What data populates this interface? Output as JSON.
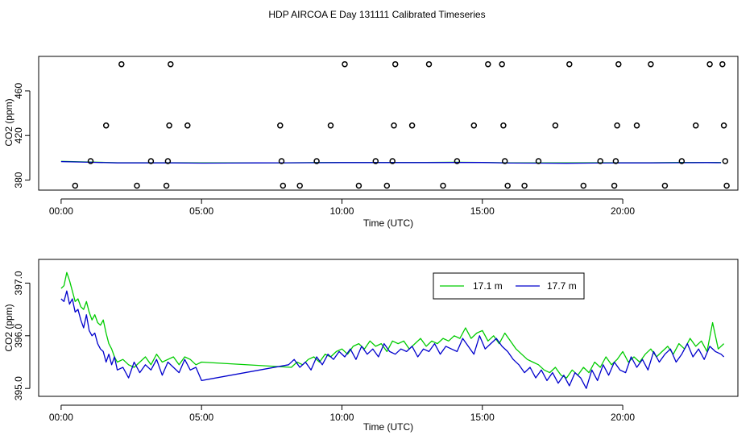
{
  "title": "HDP AIRCOA E  Day 131111  Calibrated Timeseries",
  "chart_data": [
    {
      "type": "line",
      "xlabel": "Time (UTC)",
      "ylabel": "CO2 (ppm)",
      "xlim": [
        -0.8,
        24.1
      ],
      "ylim": [
        371,
        491
      ],
      "x_ticks": [
        0,
        5,
        10,
        15,
        20
      ],
      "x_tick_labels": [
        "00:00",
        "05:00",
        "10:00",
        "15:00",
        "20:00"
      ],
      "y_ticks": [
        380,
        420,
        460
      ],
      "y_tick_labels": [
        "380",
        "420",
        "460"
      ],
      "legend": false,
      "series": [
        {
          "color": "#00cc00",
          "x": [
            0,
            1,
            2,
            3,
            4,
            5,
            6,
            7,
            8,
            9,
            10,
            11,
            12,
            13,
            14,
            15,
            16,
            17,
            18,
            19,
            20,
            21,
            22,
            23,
            23.5
          ],
          "y": [
            396.8,
            396.2,
            395.6,
            395.6,
            395.6,
            395.5,
            395.5,
            395.5,
            395.5,
            395.7,
            395.8,
            395.8,
            395.9,
            395.9,
            396.0,
            395.9,
            395.5,
            395.5,
            395.4,
            395.6,
            395.6,
            395.6,
            395.8,
            395.9,
            395.8
          ]
        },
        {
          "color": "#0000cc",
          "x": [
            0,
            1,
            2,
            3,
            4,
            5,
            6,
            7,
            8,
            9,
            10,
            11,
            12,
            13,
            14,
            15,
            16,
            17,
            18,
            19,
            20,
            21,
            22,
            23,
            23.5
          ],
          "y": [
            396.6,
            396.0,
            395.4,
            395.4,
            395.4,
            395.2,
            395.3,
            395.4,
            395.5,
            395.6,
            395.7,
            395.7,
            395.7,
            395.7,
            395.8,
            395.8,
            395.3,
            395.2,
            395.1,
            395.3,
            395.4,
            395.4,
            395.6,
            395.7,
            395.6
          ]
        }
      ],
      "outliers": {
        "x": [
          0.5,
          1.05,
          1.6,
          2.15,
          2.7,
          3.2,
          3.75,
          3.8,
          3.85,
          3.9,
          4.5,
          7.8,
          7.85,
          7.9,
          8.5,
          9.1,
          9.6,
          10.1,
          10.6,
          11.2,
          11.6,
          11.8,
          11.85,
          11.9,
          12.5,
          13.1,
          13.6,
          14.1,
          14.7,
          15.2,
          15.7,
          15.75,
          15.8,
          15.9,
          16.5,
          17.0,
          17.6,
          18.1,
          18.6,
          19.2,
          19.7,
          19.75,
          19.8,
          19.85,
          20.5,
          21.0,
          21.5,
          22.1,
          22.6,
          23.1,
          23.55,
          23.6,
          23.65,
          23.7
        ],
        "y": [
          375,
          397,
          429,
          484,
          375,
          397,
          375,
          397,
          429,
          484,
          429,
          429,
          397,
          375,
          375,
          397,
          429,
          484,
          375,
          397,
          375,
          397,
          429,
          484,
          429,
          484,
          375,
          397,
          429,
          484,
          484,
          429,
          397,
          375,
          375,
          397,
          429,
          484,
          375,
          397,
          375,
          397,
          429,
          484,
          429,
          484,
          375,
          397,
          429,
          484,
          484,
          429,
          397,
          375
        ]
      }
    },
    {
      "type": "line",
      "xlabel": "Time (UTC)",
      "ylabel": "CO2 (ppm)",
      "xlim": [
        -0.8,
        24.1
      ],
      "ylim": [
        394.85,
        397.45
      ],
      "x_ticks": [
        0,
        5,
        10,
        15,
        20
      ],
      "x_tick_labels": [
        "00:00",
        "05:00",
        "10:00",
        "15:00",
        "20:00"
      ],
      "y_ticks": [
        395.0,
        396.0,
        397.0
      ],
      "y_tick_labels": [
        "395.0",
        "396.0",
        "397.0"
      ],
      "legend": "top-right",
      "series": [
        {
          "name": "17.1 m",
          "color": "#00cc00",
          "x": [
            0.0,
            0.1,
            0.2,
            0.3,
            0.4,
            0.5,
            0.6,
            0.7,
            0.8,
            0.9,
            1.0,
            1.1,
            1.2,
            1.3,
            1.4,
            1.5,
            1.6,
            1.7,
            1.8,
            1.9,
            2.0,
            2.2,
            2.4,
            2.6,
            2.8,
            3.0,
            3.2,
            3.4,
            3.6,
            3.8,
            4.0,
            4.2,
            4.4,
            4.6,
            4.8,
            5.0,
            8.2,
            8.4,
            8.6,
            8.8,
            9.0,
            9.2,
            9.4,
            9.6,
            9.8,
            10.0,
            10.2,
            10.4,
            10.6,
            10.8,
            11.0,
            11.2,
            11.4,
            11.6,
            11.8,
            12.0,
            12.2,
            12.4,
            12.6,
            12.8,
            13.0,
            13.2,
            13.4,
            13.6,
            13.8,
            14.0,
            14.2,
            14.4,
            14.6,
            14.8,
            15.0,
            15.2,
            15.4,
            15.6,
            15.8,
            16.0,
            16.2,
            16.4,
            16.6,
            16.8,
            17.0,
            17.2,
            17.4,
            17.6,
            17.8,
            18.0,
            18.2,
            18.4,
            18.6,
            18.8,
            19.0,
            19.2,
            19.4,
            19.6,
            19.8,
            20.0,
            20.2,
            20.4,
            20.6,
            20.8,
            21.0,
            21.2,
            21.4,
            21.6,
            21.8,
            22.0,
            22.2,
            22.4,
            22.6,
            22.8,
            23.0,
            23.2,
            23.4,
            23.6
          ],
          "y": [
            396.9,
            396.95,
            397.2,
            397.05,
            396.85,
            396.65,
            396.7,
            396.55,
            396.5,
            396.65,
            396.45,
            396.3,
            396.4,
            396.25,
            396.2,
            396.3,
            396.05,
            395.85,
            395.75,
            395.6,
            395.5,
            395.55,
            395.45,
            395.4,
            395.5,
            395.6,
            395.45,
            395.65,
            395.5,
            395.55,
            395.6,
            395.45,
            395.6,
            395.55,
            395.45,
            395.5,
            395.4,
            395.5,
            395.45,
            395.55,
            395.6,
            395.5,
            395.65,
            395.6,
            395.7,
            395.75,
            395.65,
            395.8,
            395.85,
            395.75,
            395.9,
            395.8,
            395.85,
            395.7,
            395.9,
            395.85,
            395.9,
            395.75,
            395.85,
            395.95,
            395.8,
            395.9,
            395.85,
            395.95,
            395.9,
            396.0,
            395.95,
            396.15,
            395.95,
            396.05,
            396.1,
            395.9,
            396.0,
            395.85,
            396.05,
            395.9,
            395.75,
            395.65,
            395.55,
            395.5,
            395.45,
            395.35,
            395.3,
            395.4,
            395.25,
            395.2,
            395.35,
            395.25,
            395.4,
            395.3,
            395.5,
            395.4,
            395.6,
            395.45,
            395.55,
            395.7,
            395.5,
            395.6,
            395.5,
            395.65,
            395.75,
            395.6,
            395.7,
            395.8,
            395.65,
            395.85,
            395.75,
            395.95,
            395.8,
            395.9,
            395.7,
            396.25,
            395.75,
            395.85
          ]
        },
        {
          "name": "17.7 m",
          "color": "#0000cc",
          "x": [
            0.0,
            0.1,
            0.2,
            0.3,
            0.4,
            0.5,
            0.6,
            0.7,
            0.8,
            0.9,
            1.0,
            1.1,
            1.2,
            1.3,
            1.4,
            1.5,
            1.6,
            1.7,
            1.8,
            1.9,
            2.0,
            2.2,
            2.4,
            2.6,
            2.8,
            3.0,
            3.2,
            3.4,
            3.6,
            3.8,
            4.0,
            4.2,
            4.4,
            4.6,
            4.8,
            5.0,
            8.1,
            8.3,
            8.5,
            8.7,
            8.9,
            9.1,
            9.3,
            9.5,
            9.7,
            9.9,
            10.1,
            10.3,
            10.5,
            10.7,
            10.9,
            11.1,
            11.3,
            11.5,
            11.7,
            11.9,
            12.1,
            12.3,
            12.5,
            12.7,
            12.9,
            13.1,
            13.3,
            13.5,
            13.7,
            13.9,
            14.1,
            14.3,
            14.5,
            14.7,
            14.9,
            15.1,
            15.3,
            15.5,
            15.7,
            15.9,
            16.1,
            16.3,
            16.5,
            16.7,
            16.9,
            17.1,
            17.3,
            17.5,
            17.7,
            17.9,
            18.1,
            18.3,
            18.5,
            18.7,
            18.9,
            19.1,
            19.3,
            19.5,
            19.7,
            19.9,
            20.1,
            20.3,
            20.5,
            20.7,
            20.9,
            21.1,
            21.3,
            21.5,
            21.7,
            21.9,
            22.1,
            22.3,
            22.5,
            22.7,
            22.9,
            23.1,
            23.3,
            23.5,
            23.6
          ],
          "y": [
            396.7,
            396.65,
            396.85,
            396.6,
            396.7,
            396.45,
            396.5,
            396.3,
            396.15,
            396.4,
            396.1,
            396.0,
            396.05,
            395.85,
            395.75,
            395.7,
            395.5,
            395.65,
            395.45,
            395.6,
            395.35,
            395.4,
            395.2,
            395.5,
            395.3,
            395.45,
            395.35,
            395.55,
            395.25,
            395.5,
            395.4,
            395.3,
            395.55,
            395.35,
            395.4,
            395.15,
            395.45,
            395.55,
            395.4,
            395.5,
            395.35,
            395.6,
            395.45,
            395.65,
            395.55,
            395.7,
            395.6,
            395.75,
            395.55,
            395.8,
            395.65,
            395.75,
            395.6,
            395.85,
            395.7,
            395.65,
            395.75,
            395.7,
            395.8,
            395.6,
            395.75,
            395.7,
            395.85,
            395.65,
            395.8,
            395.75,
            395.7,
            395.95,
            395.8,
            395.65,
            396.0,
            395.75,
            395.85,
            395.95,
            395.8,
            395.7,
            395.55,
            395.45,
            395.3,
            395.4,
            395.2,
            395.35,
            395.15,
            395.3,
            395.1,
            395.25,
            395.05,
            395.3,
            395.2,
            395.0,
            395.35,
            395.15,
            395.45,
            395.25,
            395.5,
            395.35,
            395.3,
            395.6,
            395.4,
            395.55,
            395.35,
            395.7,
            395.5,
            395.65,
            395.75,
            395.5,
            395.65,
            395.85,
            395.6,
            395.75,
            395.55,
            395.8,
            395.7,
            395.65,
            395.6
          ]
        }
      ]
    }
  ]
}
